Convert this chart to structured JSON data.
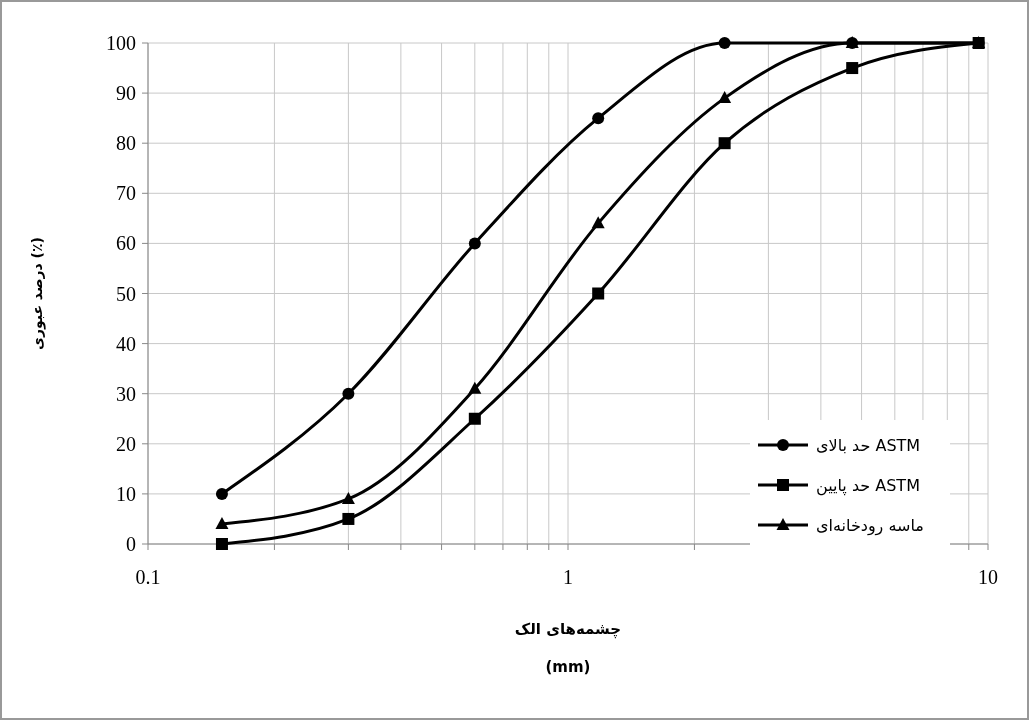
{
  "chart_data": {
    "type": "line",
    "xlabel": "چشمه‌های الک\n(mm)",
    "ylabel": "درصد عبوری (٪)",
    "log": "x",
    "grid": true,
    "legend": "right",
    "marker": "circle",
    "line_style": "solid",
    "xlim": [
      0.1,
      10
    ],
    "ylim": [
      0,
      100
    ],
    "xticks": [
      0.1,
      {
        "value": 0.2,
        "label": null
      },
      {
        "value": 0.3,
        "label": null
      },
      {
        "value": 0.4,
        "label": null
      },
      {
        "value": 0.5,
        "label": null
      },
      {
        "value": 0.6,
        "label": null
      },
      {
        "value": 0.7,
        "label": null
      },
      {
        "value": 0.8,
        "label": null
      },
      {
        "value": 0.9,
        "label": null
      },
      1,
      {
        "value": 2,
        "label": null
      },
      {
        "value": 3,
        "label": null
      },
      {
        "value": 4,
        "label": null
      },
      {
        "value": 5,
        "label": null
      },
      {
        "value": 6,
        "label": null
      },
      {
        "value": 7,
        "label": null
      },
      {
        "value": 8,
        "label": null
      },
      {
        "value": 9,
        "label": null
      },
      10
    ],
    "yticks": [
      0,
      10,
      20,
      30,
      40,
      50,
      60,
      70,
      80,
      90,
      100
    ],
    "x": [
      0.15,
      0.3,
      0.6,
      1.18,
      2.36,
      4.75,
      9.5
    ],
    "series": [
      {
        "name": "حد بالای ASTM",
        "color": "#000000",
        "marker": "circle",
        "values": [
          10,
          30,
          60,
          85,
          100,
          100,
          100
        ]
      },
      {
        "name": "حد پایین ASTM",
        "color": "#000000",
        "marker": "square",
        "values": [
          0,
          5,
          25,
          50,
          80,
          95,
          100
        ]
      },
      {
        "name": "ماسه رودخانه‌ای",
        "color": "#000000",
        "marker": "triangle",
        "values": [
          4,
          9,
          31,
          64,
          89,
          100,
          100
        ]
      }
    ]
  }
}
